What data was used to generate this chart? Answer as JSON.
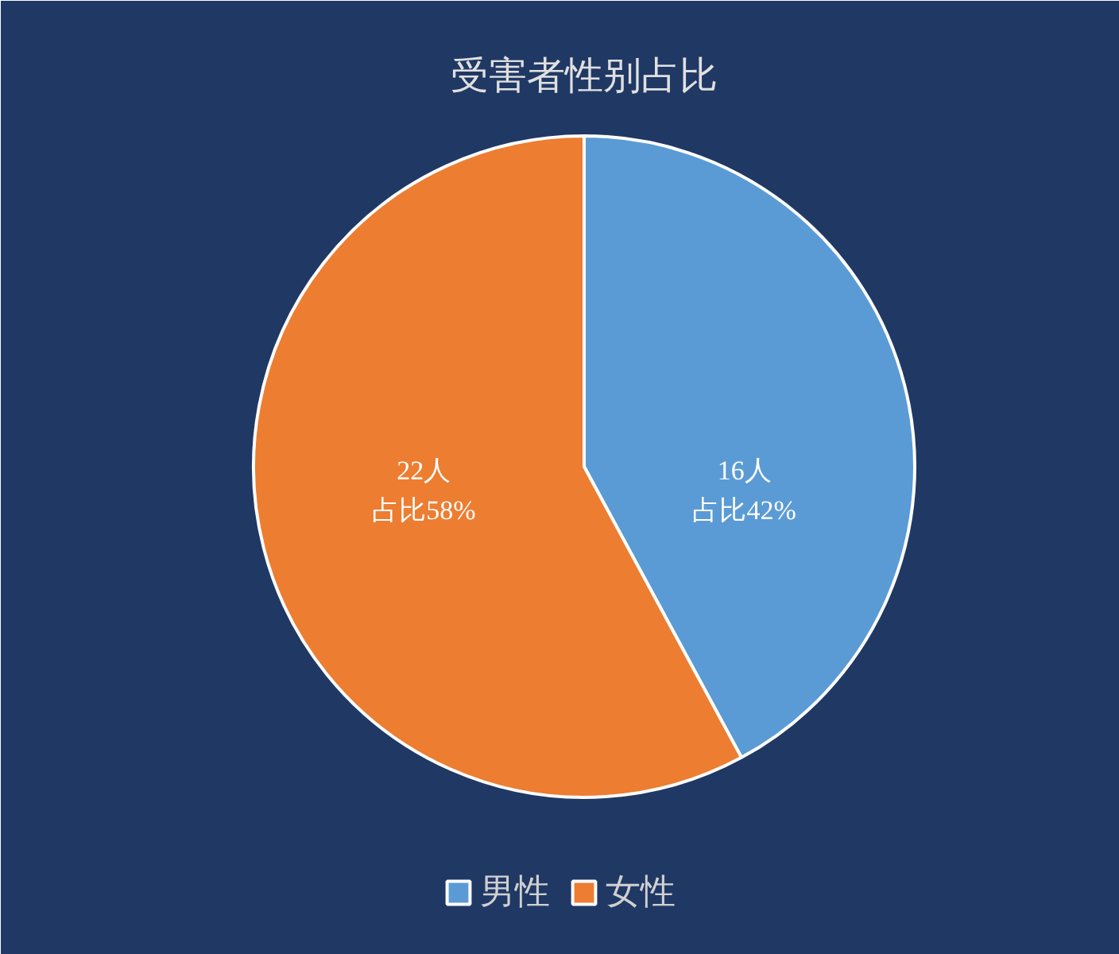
{
  "chart_data": {
    "type": "pie",
    "title": "受害者性别占比",
    "categories": [
      "男性",
      "女性"
    ],
    "values": [
      16,
      22
    ],
    "colors": [
      "#5b9bd5",
      "#ed7d31"
    ],
    "value_labels": [
      "16人占比42%",
      "22人占比58%"
    ],
    "legend": "bottom"
  }
}
